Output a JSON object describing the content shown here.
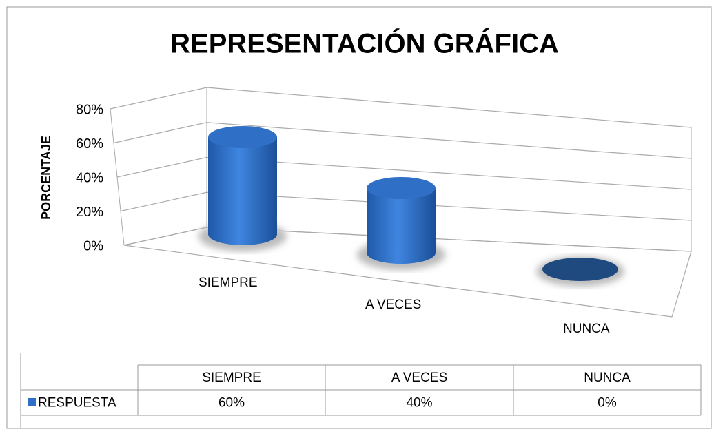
{
  "chart_data": {
    "type": "bar3d",
    "title": "REPRESENTACIÓN GRÁFICA",
    "y_label": "PORCENTAJE",
    "categories": [
      "SIEMPRE",
      "A VECES",
      "NUNCA"
    ],
    "series": [
      {
        "name": "RESPUESTA",
        "color": "#2f6fc5",
        "values": [
          60,
          40,
          0
        ],
        "value_labels": [
          "60%",
          "40%",
          "0%"
        ]
      }
    ],
    "ylim": [
      0,
      80
    ],
    "yticks": [
      {
        "value": 0,
        "label": "0%"
      },
      {
        "value": 20,
        "label": "20%"
      },
      {
        "value": 40,
        "label": "40%"
      },
      {
        "value": 60,
        "label": "60%"
      },
      {
        "value": 80,
        "label": "80%"
      }
    ],
    "grid": true,
    "data_table": true
  }
}
